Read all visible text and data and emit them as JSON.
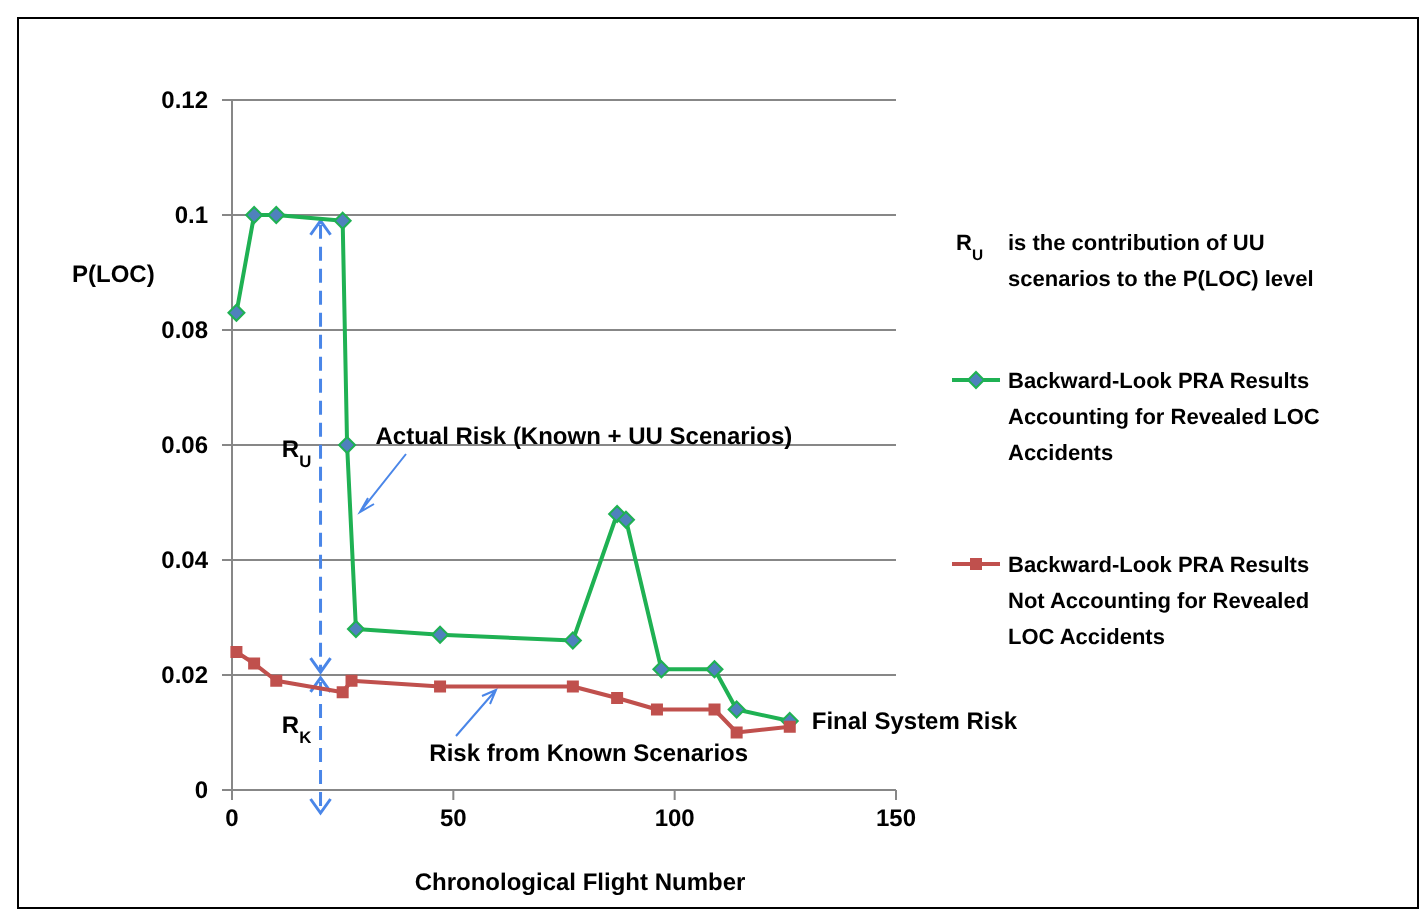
{
  "chart_data": {
    "type": "line",
    "xlabel": "Chronological Flight Number",
    "ylabel": "P(LOC)",
    "xlim": [
      0,
      150
    ],
    "xticks": [
      0,
      50,
      100,
      150
    ],
    "ylim": [
      0,
      0.12
    ],
    "yticks": [
      0,
      0.02,
      0.04,
      0.06,
      0.08,
      0.1,
      0.12
    ],
    "grid": "y",
    "legend": "right",
    "marker": "diamond",
    "line_style": "solid",
    "series": [
      {
        "name": "Backward-Look PRA Results Accounting for Revealed LOC Accidents",
        "color": "#1fb153",
        "marker": "diamond",
        "x": [
          1,
          5,
          10,
          25,
          26,
          28,
          47,
          77,
          87,
          89,
          97,
          109,
          114,
          126
        ],
        "values": [
          0.083,
          0.1,
          0.1,
          0.099,
          0.06,
          0.028,
          0.027,
          0.026,
          0.048,
          0.047,
          0.021,
          0.021,
          0.014,
          0.012
        ]
      },
      {
        "name": "Backward-Look PRA Results Not Accounting for Revealed LOC Accidents",
        "color": "#c0504d",
        "marker": "square",
        "x": [
          1,
          5,
          10,
          25,
          27,
          47,
          77,
          87,
          96,
          109,
          114,
          126
        ],
        "values": [
          0.024,
          0.022,
          0.019,
          0.017,
          0.019,
          0.018,
          0.018,
          0.016,
          0.014,
          0.014,
          0.01,
          0.011
        ]
      }
    ],
    "annotations": [
      "R$_{U}$",
      "R$_{K}$",
      {
        "text": "Actual Risk (Known + UU Scenarios)",
        "x": 27,
        "y": 0.048
      },
      {
        "text": "Risk from Known Scenarios",
        "x": 50,
        "y": 0.018
      },
      {
        "text": "Final System Risk",
        "x": 126,
        "y": 0.012
      },
      "R$_{U}$ is the contribution of UU scenarios to the P(LOC) level"
    ]
  }
}
